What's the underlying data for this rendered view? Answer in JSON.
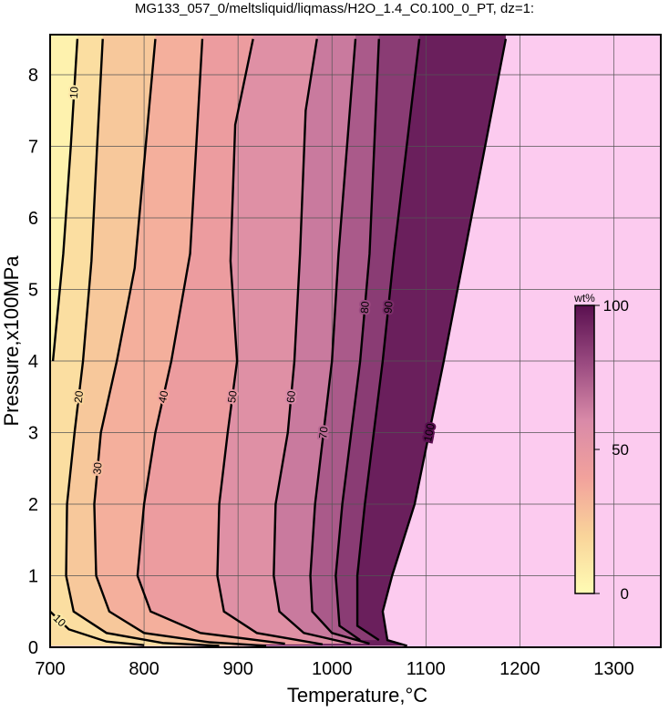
{
  "chart_data": {
    "type": "contour",
    "title": "MG133_057_0/meltsliquid/liqmass/H2O_1.4_C0.100_0_PT, dz=1:",
    "x_label": "Temperature,°C",
    "y_label": "Pressure,x100MPa",
    "xlim": [
      700,
      1350
    ],
    "xticks": [
      700,
      800,
      900,
      1000,
      1100,
      1200,
      1300
    ],
    "ylim": [
      0,
      8.56
    ],
    "yticks": [
      0,
      1,
      2,
      3,
      4,
      5,
      6,
      7,
      8
    ],
    "grid": true,
    "contours": [
      {
        "level": 100,
        "x": [
          1185,
          1141,
          1119,
          1088,
          1064,
          1054,
          1059,
          1080
        ],
        "y": [
          8.5,
          5.5,
          4,
          2,
          1,
          0.5,
          0.1,
          0.02
        ]
      },
      {
        "level": 90,
        "x": [
          1093,
          1066,
          1054,
          1035,
          1027,
          1027,
          1050
        ],
        "y": [
          8.5,
          5.5,
          4,
          2,
          1,
          0.3,
          0.1
        ]
      },
      {
        "level": 80,
        "x": [
          1050,
          1040,
          1030,
          1011,
          1004,
          1008,
          1030
        ],
        "y": [
          8.5,
          5.5,
          4,
          2,
          1,
          0.3,
          0.1
        ]
      },
      {
        "level": 70,
        "x": [
          1025,
          1007,
          1000,
          982,
          977,
          979,
          1000,
          1040
        ],
        "y": [
          8.5,
          5.5,
          4,
          2,
          1,
          0.5,
          0.2,
          0.05
        ]
      },
      {
        "level": 60,
        "x": [
          984,
          972,
          966,
          960,
          953,
          940,
          938,
          944,
          970,
          1020
        ],
        "y": [
          8.5,
          7.5,
          5.5,
          4,
          3,
          2,
          1,
          0.5,
          0.2,
          0.05
        ]
      },
      {
        "level": 50,
        "x": [
          916,
          897,
          892,
          899,
          889,
          880,
          878,
          885,
          920,
          990
        ],
        "y": [
          8.5,
          7.3,
          5.4,
          4,
          3,
          2,
          1,
          0.5,
          0.2,
          0.04
        ]
      },
      {
        "level": 40,
        "x": [
          862,
          849,
          829,
          812,
          800,
          793,
          807,
          860,
          950
        ],
        "y": [
          8.5,
          5.5,
          4,
          3,
          2,
          1,
          0.5,
          0.2,
          0.05
        ]
      },
      {
        "level": 30,
        "x": [
          812,
          790,
          771,
          754,
          747,
          749,
          763,
          800,
          870,
          930
        ],
        "y": [
          8.5,
          5.3,
          4,
          3,
          2,
          1,
          0.5,
          0.2,
          0.07,
          0.02
        ]
      },
      {
        "level": 20,
        "x": [
          756,
          750,
          744,
          735,
          726,
          718,
          717,
          725,
          760,
          820,
          880
        ],
        "y": [
          8.5,
          7,
          5.4,
          4,
          3,
          2,
          1,
          0.5,
          0.2,
          0.06,
          0.02
        ]
      },
      {
        "level": 10,
        "x": [
          729,
          722,
          714,
          703
        ],
        "y": [
          8.5,
          7,
          5.5,
          4
        ]
      },
      {
        "level": 10,
        "x": [
          700,
          720,
          760,
          800
        ],
        "y": [
          0.5,
          0.25,
          0.08,
          0.03
        ]
      }
    ],
    "colorbar": {
      "label": "wt%",
      "lim": [
        0,
        100
      ],
      "ticks": [
        0,
        50,
        100
      ],
      "colors": [
        "#fffcb4",
        "#f9d49a",
        "#f2a29c",
        "#d98aa8",
        "#9a4a80",
        "#5a1050"
      ]
    }
  }
}
